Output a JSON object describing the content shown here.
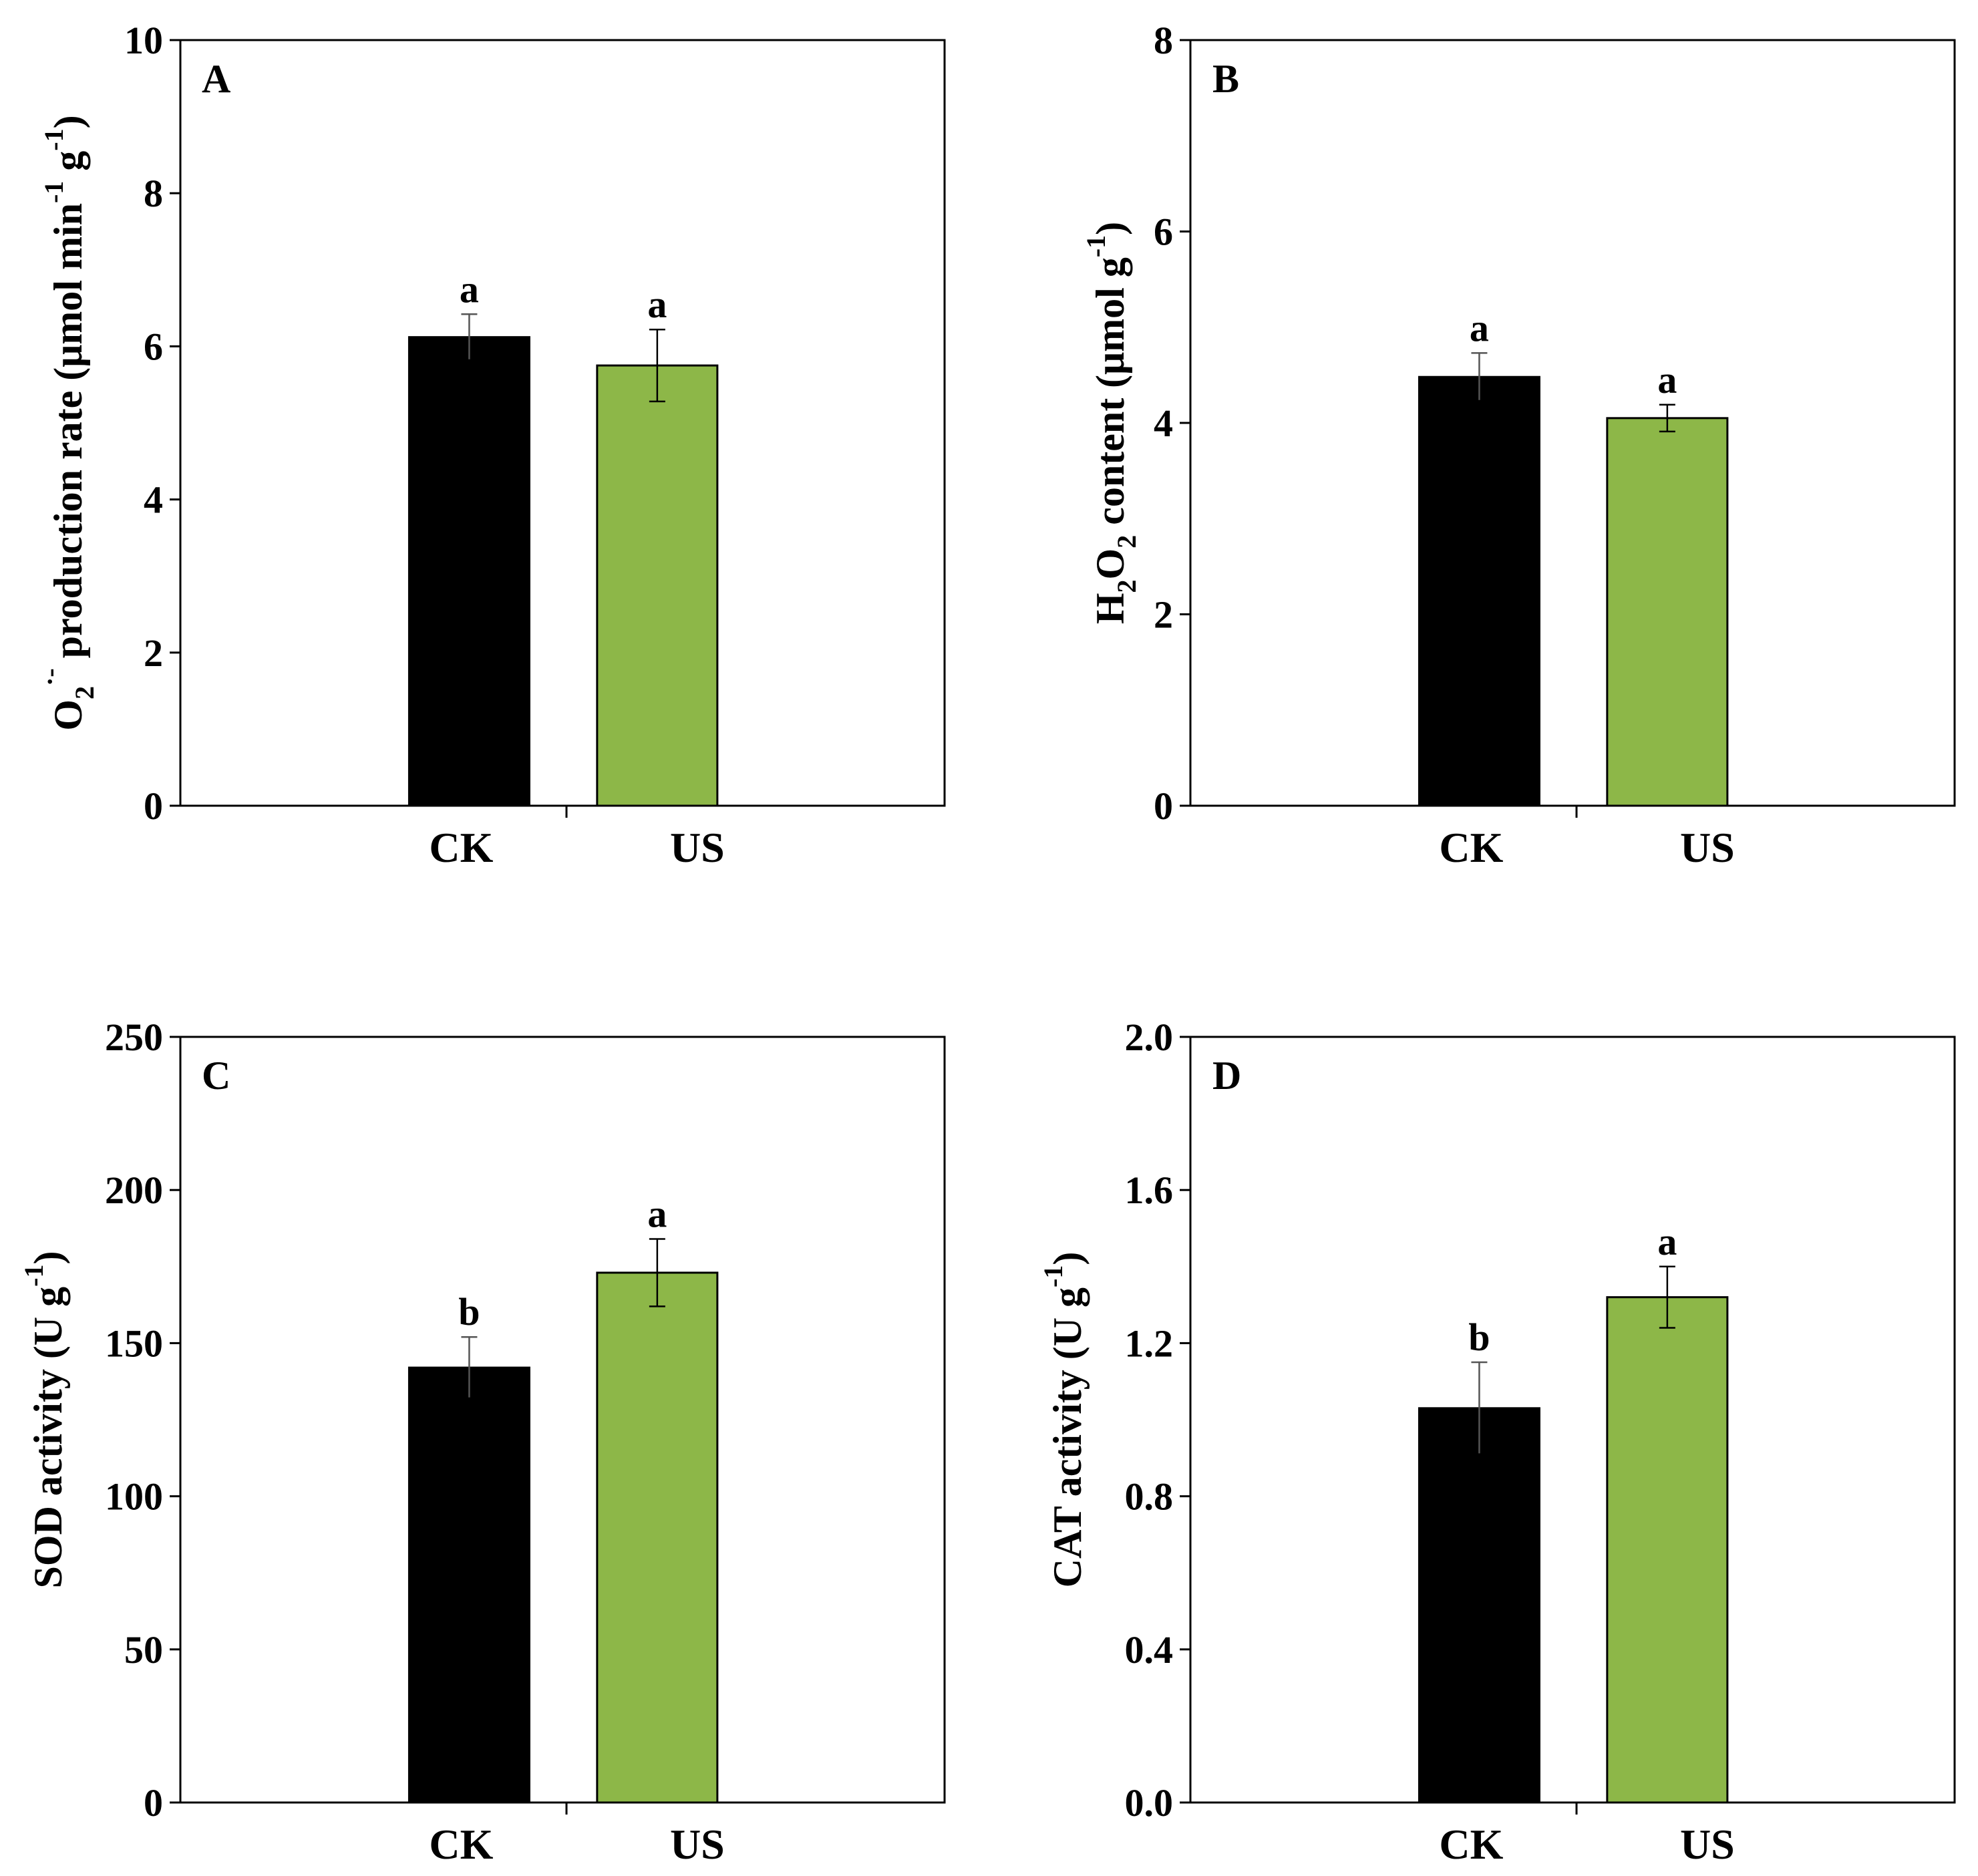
{
  "figure": {
    "panel_count": 4
  },
  "colors": {
    "CK": "#000000",
    "US": "#8db748",
    "axis": "#000000",
    "background": "#ffffff"
  },
  "chart_data": [
    {
      "type": "bar",
      "panel": "A",
      "categories": [
        "CK",
        "US"
      ],
      "values": [
        6.12,
        5.75
      ],
      "errors": [
        0.3,
        0.47
      ],
      "significance": [
        "a",
        "a"
      ],
      "ylabel": {
        "base": "O",
        "sub": "2",
        "sup": "·-",
        "rest": " production rate (μmol min",
        "unit_sup": "-1",
        "mid": " g",
        "unit_sup2": "-1",
        "end": ")"
      },
      "ylim": [
        0,
        10
      ],
      "yticks": [
        0,
        2,
        4,
        6,
        8,
        10
      ],
      "ytick_labels": [
        "0",
        "2",
        "4",
        "6",
        "8",
        "10"
      ],
      "grid": false,
      "legend": "none"
    },
    {
      "type": "bar",
      "panel": "B",
      "categories": [
        "CK",
        "US"
      ],
      "values": [
        4.48,
        4.05
      ],
      "errors": [
        0.25,
        0.14
      ],
      "significance": [
        "a",
        "a"
      ],
      "ylabel": {
        "p1": "H",
        "s1": "2",
        "p2": "O",
        "s2": "2",
        "rest": " content (μmol g",
        "sup": "-1",
        "end": ")"
      },
      "ylim": [
        0,
        8
      ],
      "yticks": [
        0,
        2,
        4,
        6,
        8
      ],
      "ytick_labels": [
        "0",
        "2",
        "4",
        "6",
        "8"
      ],
      "grid": false,
      "legend": "none"
    },
    {
      "type": "bar",
      "panel": "C",
      "categories": [
        "CK",
        "US"
      ],
      "values": [
        142,
        173
      ],
      "errors": [
        10,
        11
      ],
      "significance": [
        "b",
        "a"
      ],
      "ylabel": {
        "text": "SOD activity (U g",
        "sup": "-1",
        "end": ")"
      },
      "ylim": [
        0,
        250
      ],
      "yticks": [
        0,
        50,
        100,
        150,
        200,
        250
      ],
      "ytick_labels": [
        "0",
        "50",
        "100",
        "150",
        "200",
        "250"
      ],
      "grid": false,
      "legend": "none"
    },
    {
      "type": "bar",
      "panel": "D",
      "categories": [
        "CK",
        "US"
      ],
      "values": [
        1.03,
        1.32
      ],
      "errors": [
        0.12,
        0.08
      ],
      "significance": [
        "b",
        "a"
      ],
      "ylabel": {
        "text": "CAT activity (U g",
        "sup": "-1",
        "end": ")"
      },
      "ylim": [
        0,
        2.0
      ],
      "yticks": [
        0,
        0.4,
        0.8,
        1.2,
        1.6,
        2.0
      ],
      "ytick_labels": [
        "0.0",
        "0.4",
        "0.8",
        "1.2",
        "1.6",
        "2.0"
      ],
      "grid": false,
      "legend": "none"
    }
  ]
}
